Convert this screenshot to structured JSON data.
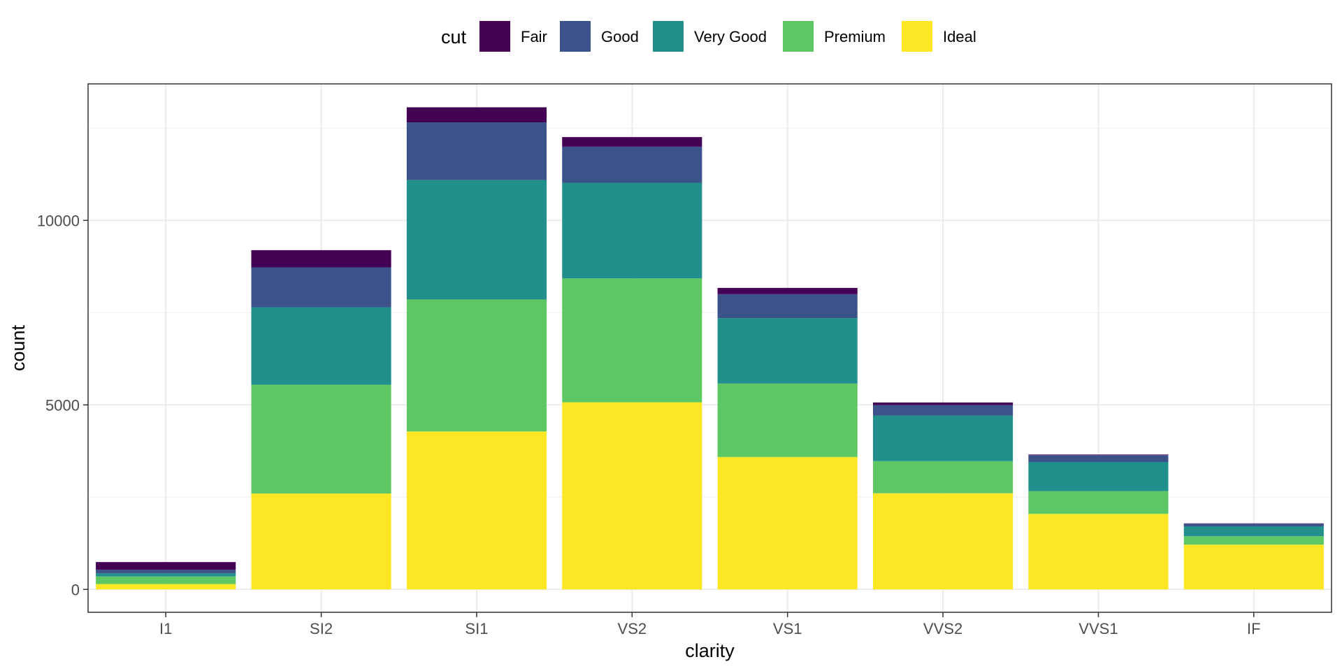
{
  "chart_data": {
    "type": "bar",
    "stacked": true,
    "xlabel": "clarity",
    "ylabel": "count",
    "ylim": [
      -620,
      13700
    ],
    "yticks": [
      0,
      5000,
      10000
    ],
    "ytick_labels": [
      "0",
      "5000",
      "10000"
    ],
    "grid": true,
    "legend_position": "top",
    "legend_title": "cut",
    "categories": [
      "I1",
      "SI2",
      "SI1",
      "VS2",
      "VS1",
      "VVS2",
      "VVS1",
      "IF"
    ],
    "series": [
      {
        "name": "Ideal",
        "color": "#FDE725",
        "values": [
          146,
          2598,
          4282,
          5071,
          3589,
          2606,
          2047,
          1212
        ]
      },
      {
        "name": "Premium",
        "color": "#5DC863",
        "values": [
          205,
          2949,
          3575,
          3357,
          1989,
          870,
          616,
          230
        ]
      },
      {
        "name": "Very Good",
        "color": "#21908C",
        "values": [
          84,
          2100,
          3240,
          2591,
          1775,
          1235,
          789,
          268
        ]
      },
      {
        "name": "Good",
        "color": "#3B528B",
        "values": [
          96,
          1081,
          1560,
          978,
          648,
          286,
          186,
          71
        ]
      },
      {
        "name": "Fair",
        "color": "#440154",
        "values": [
          210,
          466,
          408,
          261,
          170,
          69,
          17,
          9
        ]
      }
    ],
    "legend_order": [
      "Fair",
      "Good",
      "Very Good",
      "Premium",
      "Ideal"
    ]
  }
}
